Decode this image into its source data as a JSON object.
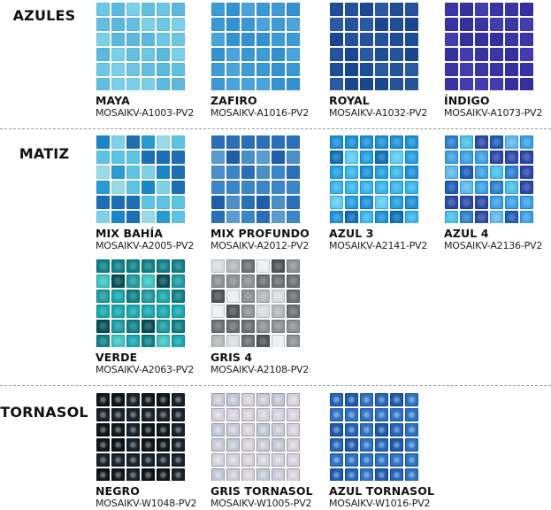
{
  "sections": [
    {
      "title": "AZULES",
      "items": [
        {
          "name": "MAYA",
          "code": "MOSAIKV-A1003-PV2",
          "style": "solid",
          "colors": [
            "#6cc6e4",
            "#5cb9de",
            "#7acfe9",
            "#62bfe2"
          ]
        },
        {
          "name": "ZAFIRO",
          "code": "MOSAIKV-A1016-PV2",
          "style": "solid",
          "colors": [
            "#3d9bd6",
            "#3492d0",
            "#4aa4db",
            "#3a98d4"
          ]
        },
        {
          "name": "ROYAL",
          "code": "MOSAIKV-A1032-PV2",
          "style": "solid",
          "colors": [
            "#1f4d96",
            "#24539c",
            "#1b4790",
            "#2a5aa3"
          ]
        },
        {
          "name": "ÍNDIGO",
          "code": "MOSAIKV-A1073-PV2",
          "style": "solid",
          "colors": [
            "#3b35a6",
            "#3530a0",
            "#433cb0",
            "#3933a8"
          ]
        }
      ]
    },
    {
      "title": "MATIZ",
      "items": [
        {
          "name": "MIX BAHÍA",
          "code": "MOSAIKV-A2005-PV2",
          "style": "mixed",
          "colors": [
            "#1a86c8",
            "#5cc4e2",
            "#9ad9e6",
            "#2a9ad3",
            "#1c6fb4",
            "#7fd0e8"
          ]
        },
        {
          "name": "MIX PROFUNDO",
          "code": "MOSAIKV-A2012-PV2",
          "style": "mixed",
          "colors": [
            "#2a6fb8",
            "#3c86c8",
            "#5a9bd0",
            "#1f5ea8",
            "#4a8fc8"
          ]
        },
        {
          "name": "AZUL 3",
          "code": "MOSAIKV-A2141-PV2",
          "style": "glossy",
          "colors": [
            "#1b8fd8",
            "#36b4ea",
            "#0e6fb8",
            "#5ccdf3",
            "#1f9ee0"
          ]
        },
        {
          "name": "AZUL 4",
          "code": "MOSAIKV-A2136-PV2",
          "style": "glossy",
          "colors": [
            "#2a7fd0",
            "#3aa0e6",
            "#5ab9ee",
            "#1c5cb8",
            "#2b47a8",
            "#48c0e8"
          ]
        }
      ]
    },
    {
      "title": "",
      "items": [
        {
          "name": "VERDE",
          "code": "MOSAIKV-A2063-PV2",
          "style": "glossy",
          "colors": [
            "#0d7f86",
            "#14a7ad",
            "#3bc3c2",
            "#064f56",
            "#1b9aa0"
          ]
        },
        {
          "name": "GRIS 4",
          "code": "MOSAIKV-A2108-PV2",
          "style": "glossy",
          "colors": [
            "#d9dde0",
            "#8b9094",
            "#4f5458",
            "#eceff1",
            "#6a6f73",
            "#b3b8bb"
          ]
        }
      ]
    },
    {
      "title": "TORNASOL",
      "items": [
        {
          "name": "NEGRO",
          "code": "MOSAIKV-W1048-PV2",
          "style": "pearl",
          "colors": [
            "#0c1418",
            "#15202a",
            "#0a1216"
          ]
        },
        {
          "name": "GRIS TORNASOL",
          "code": "MOSAIKV-W1005-PV2",
          "style": "pearl",
          "colors": [
            "#c9c9d9",
            "#d6d0de",
            "#bfc7d6"
          ]
        },
        {
          "name": "AZUL TORNASOL",
          "code": "MOSAIKV-W1016-PV2",
          "style": "pearl",
          "colors": [
            "#1f63b8",
            "#2a70c3",
            "#1b58ab"
          ]
        }
      ]
    }
  ]
}
